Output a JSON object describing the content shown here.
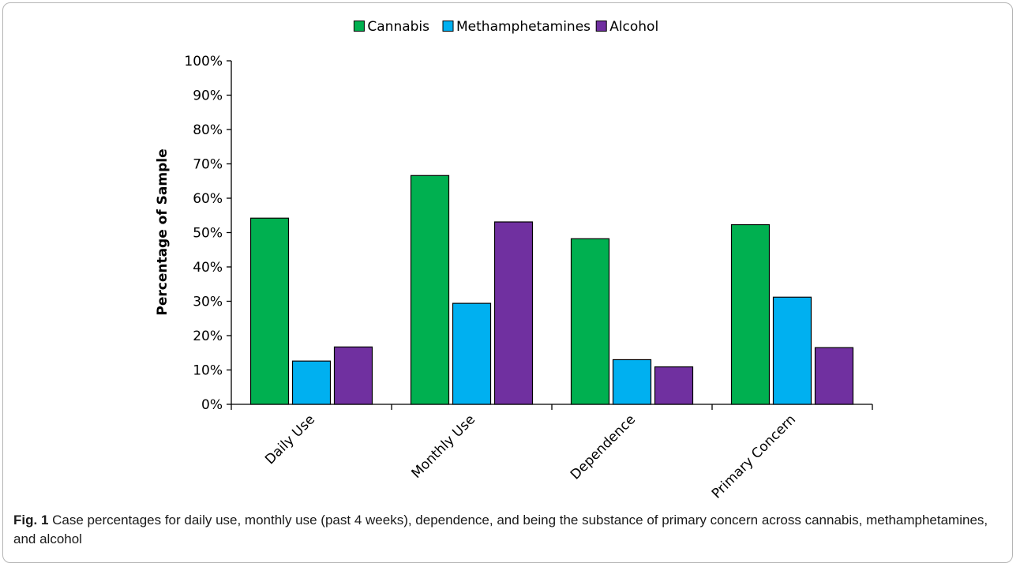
{
  "chart_data": {
    "type": "bar",
    "categories": [
      "Daily Use",
      "Monthly Use",
      "Dependence",
      "Primary Concern"
    ],
    "series": [
      {
        "name": "Cannabis",
        "color": "#00b050",
        "values": [
          54.2,
          66.6,
          48.2,
          52.3
        ]
      },
      {
        "name": "Methamphetamines",
        "color": "#00b0f0",
        "values": [
          12.6,
          29.4,
          13.0,
          31.2
        ]
      },
      {
        "name": "Alcohol",
        "color": "#7030a0",
        "values": [
          16.7,
          53.1,
          10.9,
          16.5
        ]
      }
    ],
    "ylabel": "Percentage of Sample",
    "xlabel": "",
    "ylim": [
      0,
      100
    ],
    "yticks": [
      "0%",
      "10%",
      "20%",
      "30%",
      "40%",
      "50%",
      "60%",
      "70%",
      "80%",
      "90%",
      "100%"
    ],
    "legend_position": "top-center",
    "grid": false
  },
  "caption": {
    "label": "Fig. 1",
    "text": " Case percentages for daily use, monthly use (past 4 weeks), dependence, and being the substance of primary concern across cannabis, methamphetamines, and alcohol"
  }
}
